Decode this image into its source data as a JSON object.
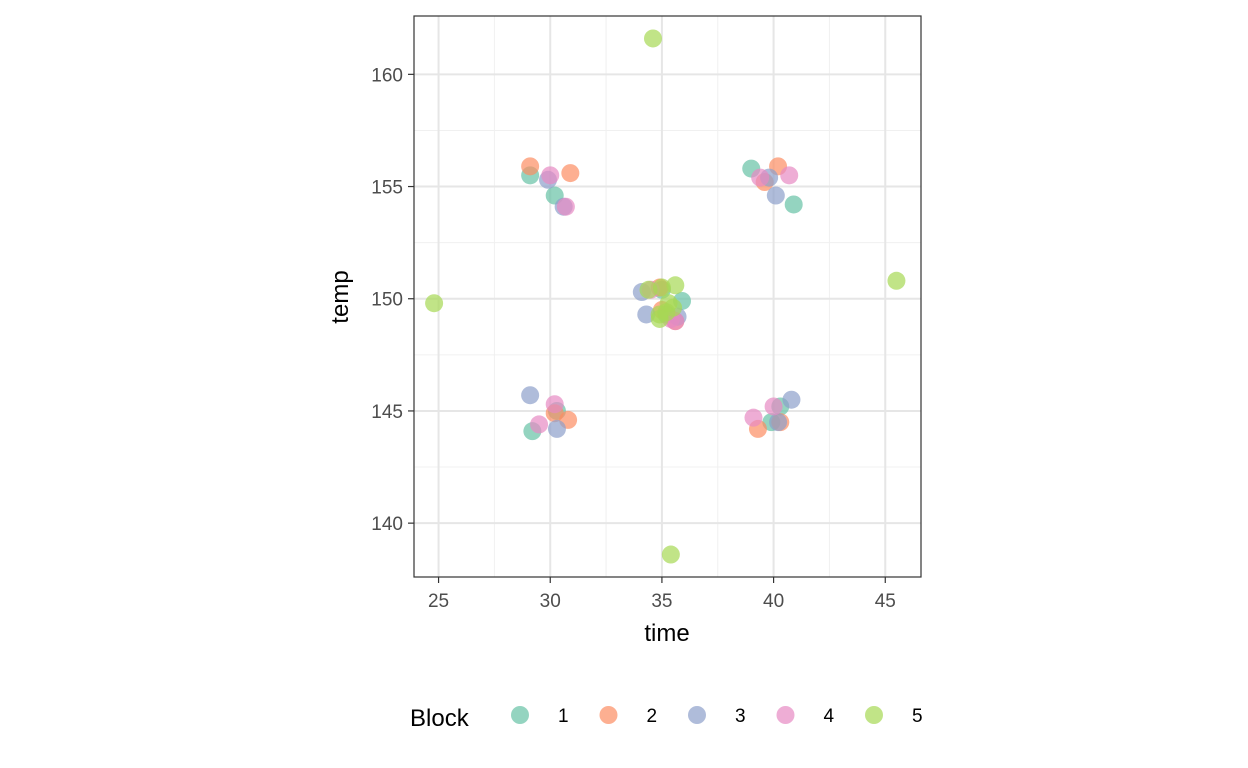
{
  "chart_data": {
    "type": "scatter",
    "xlabel": "time",
    "ylabel": "temp",
    "xlim": [
      23.9,
      46.6
    ],
    "ylim": [
      137.6,
      162.6
    ],
    "x_ticks": [
      25,
      30,
      35,
      40,
      45
    ],
    "y_ticks": [
      140,
      145,
      150,
      155,
      160
    ],
    "x_tick_labels": [
      "25",
      "30",
      "35",
      "40",
      "45"
    ],
    "y_tick_labels": [
      "140",
      "145",
      "150",
      "155",
      "160"
    ],
    "grid": true,
    "legend": {
      "title": "Block",
      "position": "bottom"
    },
    "series": [
      {
        "name": "1",
        "color": "#66C2A5",
        "points": [
          [
            29.1,
            155.5
          ],
          [
            30.2,
            154.6
          ],
          [
            39.0,
            155.8
          ],
          [
            40.9,
            154.2
          ],
          [
            29.2,
            144.1
          ],
          [
            30.3,
            145.0
          ],
          [
            39.9,
            144.5
          ],
          [
            40.3,
            145.2
          ],
          [
            35.0,
            150.4
          ],
          [
            35.9,
            149.9
          ],
          [
            35.2,
            149.3
          ]
        ]
      },
      {
        "name": "2",
        "color": "#FC8D62",
        "points": [
          [
            29.1,
            155.9
          ],
          [
            30.9,
            155.6
          ],
          [
            39.6,
            155.2
          ],
          [
            40.2,
            155.9
          ],
          [
            30.2,
            144.9
          ],
          [
            30.8,
            144.6
          ],
          [
            39.3,
            144.2
          ],
          [
            40.3,
            144.5
          ],
          [
            34.9,
            150.5
          ],
          [
            35.6,
            149.0
          ],
          [
            35.0,
            149.5
          ]
        ]
      },
      {
        "name": "3",
        "color": "#8DA0CB",
        "points": [
          [
            29.9,
            155.3
          ],
          [
            30.6,
            154.1
          ],
          [
            39.8,
            155.4
          ],
          [
            40.1,
            154.6
          ],
          [
            29.1,
            145.7
          ],
          [
            30.3,
            144.2
          ],
          [
            40.2,
            144.5
          ],
          [
            40.8,
            145.5
          ],
          [
            34.1,
            150.3
          ],
          [
            34.3,
            149.3
          ],
          [
            35.7,
            149.2
          ]
        ]
      },
      {
        "name": "4",
        "color": "#E78AC3",
        "points": [
          [
            30.0,
            155.5
          ],
          [
            30.7,
            154.1
          ],
          [
            39.4,
            155.4
          ],
          [
            40.7,
            155.5
          ],
          [
            29.5,
            144.4
          ],
          [
            30.2,
            145.3
          ],
          [
            39.1,
            144.7
          ],
          [
            40.0,
            145.2
          ],
          [
            34.5,
            150.4
          ],
          [
            35.4,
            149.1
          ],
          [
            35.6,
            149.0
          ]
        ]
      },
      {
        "name": "5",
        "color": "#A6D854",
        "points": [
          [
            34.6,
            161.6
          ],
          [
            35.4,
            138.6
          ],
          [
            24.8,
            149.8
          ],
          [
            45.5,
            150.8
          ],
          [
            34.4,
            150.4
          ],
          [
            35.0,
            150.5
          ],
          [
            35.6,
            150.6
          ],
          [
            35.3,
            149.8
          ],
          [
            34.9,
            149.3
          ],
          [
            35.2,
            149.4
          ],
          [
            34.9,
            149.1
          ],
          [
            35.5,
            149.6
          ]
        ]
      }
    ]
  }
}
